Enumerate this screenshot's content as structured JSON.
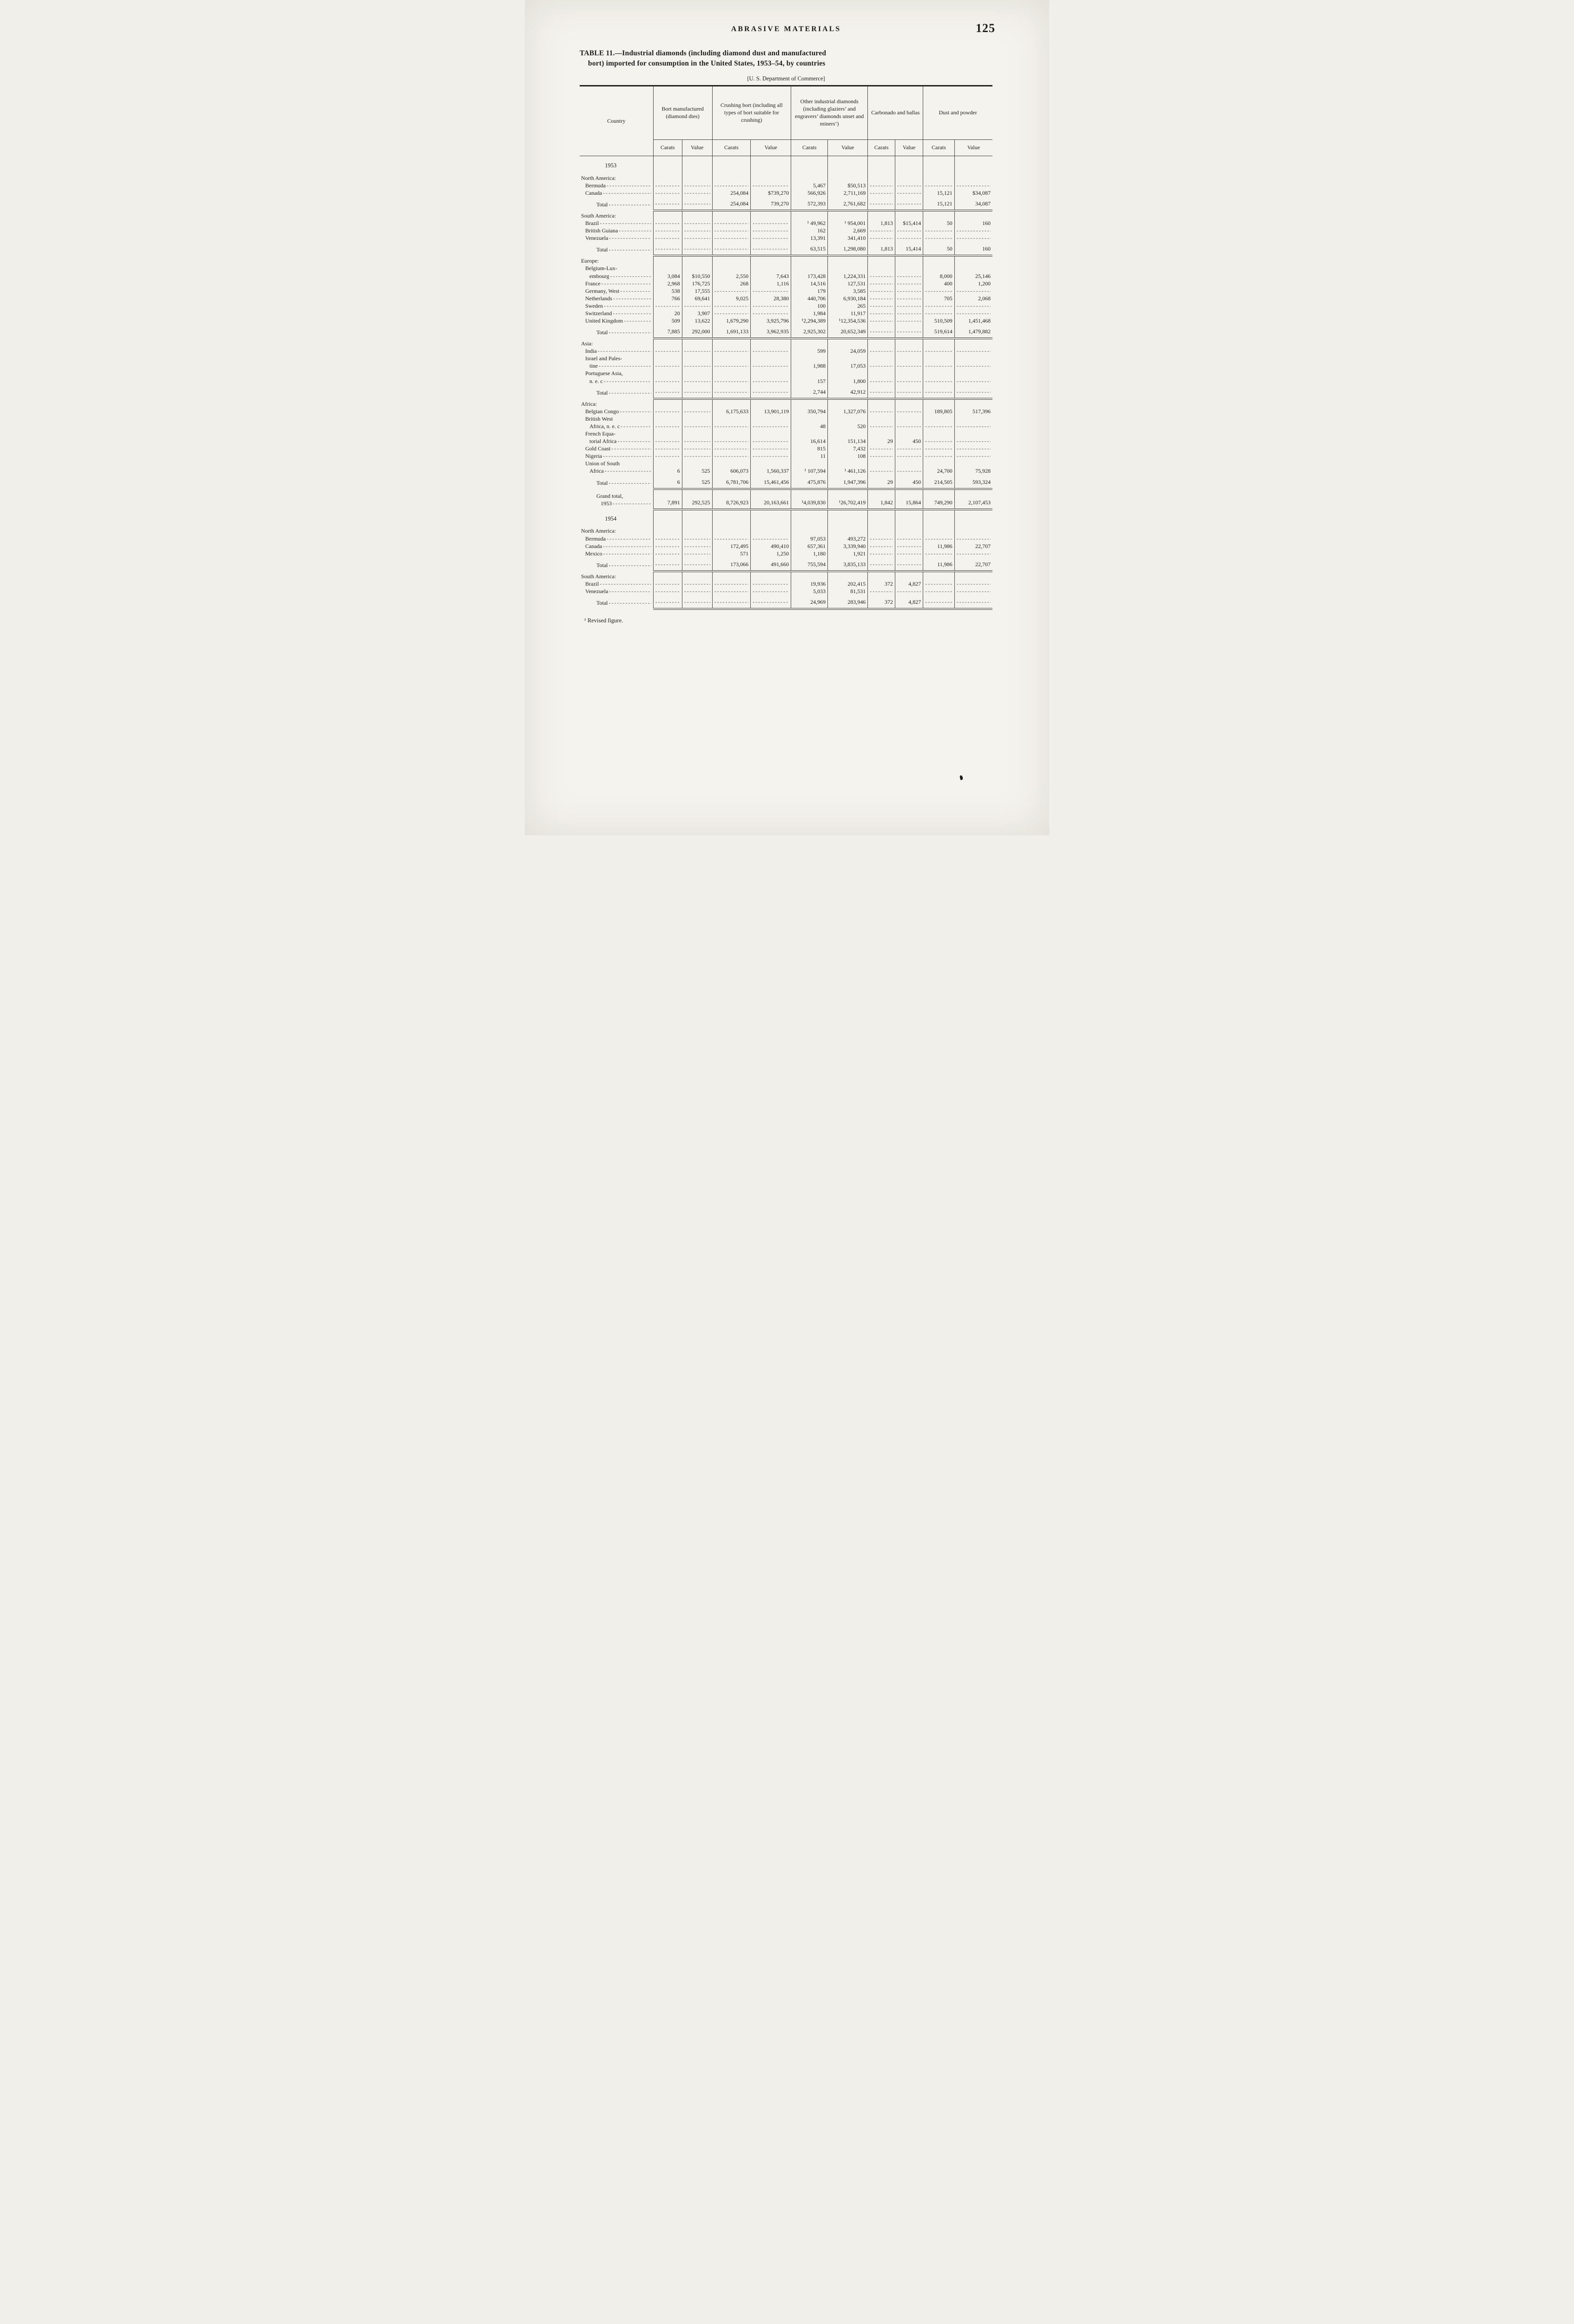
{
  "page": {
    "running_header": "ABRASIVE MATERIALS",
    "page_number": "125",
    "title_line1": "TABLE 11.—Industrial diamonds (including diamond dust and manufactured",
    "title_line2": "bort) imported for consumption in the United States, 1953–54, by countries",
    "source": "[U. S. Department of Commerce]",
    "footnote": "¹ Revised figure."
  },
  "table": {
    "groups": [
      "Country",
      "Bort manufactured (diamond dies)",
      "Crushing bort (including all types of bort suitable for crushing)",
      "Other industrial diamonds (including glaziers’ and engravers’ diamonds unset and miners’)",
      "Carbonado and ballas",
      "Dust and powder"
    ],
    "subheaders": [
      "Carats",
      "Value"
    ],
    "rows": [
      {
        "t": "year",
        "label": "1953"
      },
      {
        "t": "section",
        "label": "North America:"
      },
      {
        "t": "item",
        "label": "Bermuda",
        "cells": [
          "",
          "",
          "",
          "",
          "5,467",
          "$50,513",
          "",
          "",
          "",
          ""
        ]
      },
      {
        "t": "item",
        "label": "Canada",
        "cells": [
          "",
          "",
          "254,084",
          "$739,270",
          "566,926",
          "2,711,169",
          "",
          "",
          "15,121",
          "$34,087"
        ]
      },
      {
        "t": "total",
        "label": "Total",
        "cells": [
          "",
          "",
          "254,084",
          "739,270",
          "572,393",
          "2,761,682",
          "",
          "",
          "15,121",
          "34,087"
        ]
      },
      {
        "t": "section",
        "label": "South America:"
      },
      {
        "t": "item",
        "label": "Brazil",
        "cells": [
          "",
          "",
          "",
          "",
          "¹ 49,962",
          "¹ 954,001",
          "1,813",
          "$15,414",
          "50",
          "160"
        ]
      },
      {
        "t": "item",
        "label": "British Guiana",
        "cells": [
          "",
          "",
          "",
          "",
          "162",
          "2,669",
          "",
          "",
          "",
          ""
        ]
      },
      {
        "t": "item",
        "label": "Venezuela",
        "cells": [
          "",
          "",
          "",
          "",
          "13,391",
          "341,410",
          "",
          "",
          "",
          ""
        ]
      },
      {
        "t": "total",
        "label": "Total",
        "cells": [
          "",
          "",
          "",
          "",
          "63,515",
          "1,298,080",
          "1,813",
          "15,414",
          "50",
          "160"
        ]
      },
      {
        "t": "section",
        "label": "Europe:"
      },
      {
        "t": "item",
        "label": "Belgium-Lux-\nembourg",
        "cells": [
          "3,084",
          "$10,550",
          "2,550",
          "7,643",
          "173,428",
          "1,224,331",
          "",
          "",
          "8,000",
          "25,146"
        ]
      },
      {
        "t": "item",
        "label": "France",
        "cells": [
          "2,968",
          "176,725",
          "268",
          "1,116",
          "14,516",
          "127,531",
          "",
          "",
          "400",
          "1,200"
        ]
      },
      {
        "t": "item",
        "label": "Germany, West",
        "cells": [
          "538",
          "17,555",
          "",
          "",
          "179",
          "3,585",
          "",
          "",
          "",
          ""
        ]
      },
      {
        "t": "item",
        "label": "Netherlands",
        "cells": [
          "766",
          "69,641",
          "9,025",
          "28,380",
          "440,706",
          "6,930,184",
          "",
          "",
          "705",
          "2,068"
        ]
      },
      {
        "t": "item",
        "label": "Sweden",
        "cells": [
          "",
          "",
          "",
          "",
          "100",
          "265",
          "",
          "",
          "",
          ""
        ]
      },
      {
        "t": "item",
        "label": "Switzerland",
        "cells": [
          "20",
          "3,907",
          "",
          "",
          "1,984",
          "11,917",
          "",
          "",
          "",
          ""
        ]
      },
      {
        "t": "item",
        "label": "United Kingdom",
        "cells": [
          "509",
          "13,622",
          "1,679,290",
          "3,925,796",
          "¹2,294,389",
          "¹12,354,536",
          "",
          "",
          "510,509",
          "1,451,468"
        ]
      },
      {
        "t": "total",
        "label": "Total",
        "cells": [
          "7,885",
          "292,000",
          "1,691,133",
          "3,962,935",
          "2,925,302",
          "20,652,349",
          "",
          "",
          "519,614",
          "1,479,882"
        ]
      },
      {
        "t": "section",
        "label": "Asia:"
      },
      {
        "t": "item",
        "label": "India",
        "cells": [
          "",
          "",
          "",
          "",
          "599",
          "24,059",
          "",
          "",
          "",
          ""
        ]
      },
      {
        "t": "item",
        "label": "Israel and Pales-\ntine",
        "cells": [
          "",
          "",
          "",
          "",
          "1,988",
          "17,053",
          "",
          "",
          "",
          ""
        ]
      },
      {
        "t": "item",
        "label": "Portuguese Asia,\nn. e. c",
        "cells": [
          "",
          "",
          "",
          "",
          "157",
          "1,800",
          "",
          "",
          "",
          ""
        ]
      },
      {
        "t": "total",
        "label": "Total",
        "cells": [
          "",
          "",
          "",
          "",
          "2,744",
          "42,912",
          "",
          "",
          "",
          ""
        ]
      },
      {
        "t": "section",
        "label": "Africa:"
      },
      {
        "t": "item",
        "label": "Belgian Congo",
        "cells": [
          "",
          "",
          "6,175,633",
          "13,901,119",
          "350,794",
          "1,327,076",
          "",
          "",
          "189,805",
          "517,396"
        ]
      },
      {
        "t": "item",
        "label": "British West\nAfrica, n. e. c",
        "cells": [
          "",
          "",
          "",
          "",
          "48",
          "520",
          "",
          "",
          "",
          ""
        ]
      },
      {
        "t": "item",
        "label": "French Equa-\ntorial Africa",
        "cells": [
          "",
          "",
          "",
          "",
          "16,614",
          "151,134",
          "29",
          "450",
          "",
          ""
        ]
      },
      {
        "t": "item",
        "label": "Gold Coast",
        "cells": [
          "",
          "",
          "",
          "",
          "815",
          "7,432",
          "",
          "",
          "",
          ""
        ]
      },
      {
        "t": "item",
        "label": "Nigeria",
        "cells": [
          "",
          "",
          "",
          "",
          "11",
          "108",
          "",
          "",
          "",
          ""
        ]
      },
      {
        "t": "item",
        "label": "Union of South\nAfrica",
        "cells": [
          "6",
          "525",
          "606,073",
          "1,560,337",
          "¹ 107,594",
          "¹ 461,126",
          "",
          "",
          "24,700",
          "75,928"
        ]
      },
      {
        "t": "total",
        "label": "Total",
        "cells": [
          "6",
          "525",
          "6,781,706",
          "15,461,456",
          "475,876",
          "1,947,396",
          "29",
          "450",
          "214,505",
          "593,324"
        ]
      },
      {
        "t": "grand",
        "label": "Grand total,\n1953",
        "cells": [
          "7,891",
          "292,525",
          "8,726,923",
          "20,163,661",
          "¹4,039,830",
          "¹26,702,419",
          "1,842",
          "15,864",
          "749,290",
          "2,107,453"
        ]
      },
      {
        "t": "year",
        "label": "1954"
      },
      {
        "t": "section",
        "label": "North America:"
      },
      {
        "t": "item",
        "label": "Bermuda",
        "cells": [
          "",
          "",
          "",
          "",
          "97,053",
          "493,272",
          "",
          "",
          "",
          ""
        ]
      },
      {
        "t": "item",
        "label": "Canada",
        "cells": [
          "",
          "",
          "172,495",
          "490,410",
          "657,361",
          "3,339,940",
          "",
          "",
          "11,986",
          "22,707"
        ]
      },
      {
        "t": "item",
        "label": "Mexico",
        "cells": [
          "",
          "",
          "571",
          "1,250",
          "1,180",
          "1,921",
          "",
          "",
          "",
          ""
        ]
      },
      {
        "t": "total",
        "label": "Total",
        "cells": [
          "",
          "",
          "173,066",
          "491,660",
          "755,594",
          "3,835,133",
          "",
          "",
          "11,986",
          "22,707"
        ]
      },
      {
        "t": "section",
        "label": "South America:"
      },
      {
        "t": "item",
        "label": "Brazil",
        "cells": [
          "",
          "",
          "",
          "",
          "19,936",
          "202,415",
          "372",
          "4,827",
          "",
          ""
        ]
      },
      {
        "t": "item",
        "label": "Venezuela",
        "cells": [
          "",
          "",
          "",
          "",
          "5,033",
          "81,531",
          "",
          "",
          "",
          ""
        ]
      },
      {
        "t": "total",
        "label": "Total",
        "cells": [
          "",
          "",
          "",
          "",
          "24,969",
          "283,946",
          "372",
          "4,827",
          "",
          ""
        ]
      }
    ]
  }
}
